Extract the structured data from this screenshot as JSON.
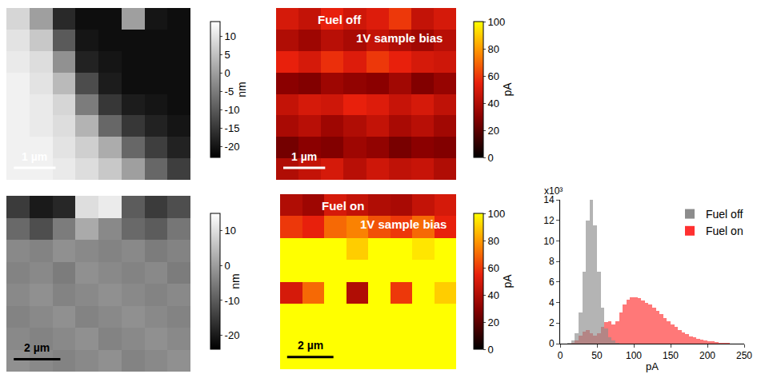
{
  "chart_data": [
    {
      "type": "heatmap",
      "xlim": [
        0,
        4.4
      ],
      "ylim": [
        0,
        4.1
      ],
      "tick_labels": false,
      "color": "gray",
      "z": [
        [
          8,
          0,
          -17,
          -21,
          -21,
          0,
          -20,
          -21
        ],
        [
          10,
          6,
          -10,
          -20,
          -21,
          -21,
          -21,
          -21
        ],
        [
          11,
          9,
          -2,
          -18,
          -20,
          -21,
          -21,
          -21
        ],
        [
          12,
          10,
          4,
          -12,
          -19,
          -21,
          -21,
          -21
        ],
        [
          12,
          11,
          8,
          -5,
          -15,
          -19,
          -20,
          -21
        ],
        [
          12,
          11,
          9,
          3,
          -8,
          -15,
          -18,
          -20
        ],
        [
          12,
          12,
          10,
          7,
          2,
          -8,
          -14,
          -18
        ],
        [
          12,
          12,
          11,
          9,
          6,
          0,
          -8,
          -14
        ]
      ],
      "zlim": [
        -23,
        14
      ],
      "zticks": [
        10,
        5,
        0,
        -5,
        -10,
        -15,
        -20
      ],
      "colorbar_title": "nm",
      "scale_bar": {
        "length": 1,
        "label": "1 µm"
      }
    },
    {
      "type": "heatmap",
      "xlim": [
        0,
        4.3
      ],
      "ylim": [
        0,
        4.1
      ],
      "tick_labels": false,
      "color": "hot",
      "z": [
        [
          50,
          45,
          55,
          48,
          52,
          60,
          45,
          50
        ],
        [
          40,
          35,
          42,
          38,
          45,
          40,
          36,
          42
        ],
        [
          55,
          50,
          58,
          52,
          60,
          55,
          50,
          48
        ],
        [
          30,
          28,
          35,
          32,
          30,
          36,
          28,
          33
        ],
        [
          45,
          50,
          48,
          55,
          52,
          46,
          50,
          44
        ],
        [
          38,
          42,
          35,
          40,
          45,
          38,
          42,
          36
        ],
        [
          25,
          30,
          28,
          35,
          32,
          26,
          30,
          28
        ],
        [
          40,
          45,
          50,
          42,
          48,
          44,
          46,
          40
        ]
      ],
      "zlim": [
        0,
        100
      ],
      "zticks": [
        0,
        20,
        40,
        60,
        80,
        100
      ],
      "colorbar_title": "pA",
      "annotations": [
        "Fuel off",
        "1V sample bias"
      ],
      "scale_bar": {
        "length": 1,
        "label": "1 µm"
      }
    },
    {
      "type": "heatmap",
      "xlim": [
        0,
        7.9
      ],
      "ylim": [
        0,
        7.6
      ],
      "tick_labels": false,
      "color": "gray",
      "z": [
        [
          -15,
          -20,
          -18,
          10,
          12,
          -10,
          -15,
          -12
        ],
        [
          -8,
          -12,
          -5,
          2,
          -3,
          -8,
          -10,
          -6
        ],
        [
          -3,
          -4,
          -2,
          -3,
          -4,
          -3,
          -5,
          -4
        ],
        [
          -4,
          -3,
          -5,
          -2,
          -3,
          -4,
          -3,
          -5
        ],
        [
          -3,
          -2,
          -4,
          -3,
          -2,
          -3,
          -4,
          -3
        ],
        [
          -4,
          -3,
          -2,
          -4,
          -3,
          -2,
          -3,
          -4
        ],
        [
          -3,
          -4,
          -3,
          -2,
          -4,
          -3,
          -2,
          -3
        ],
        [
          -2,
          -3,
          -4,
          -3,
          -2,
          -4,
          -3,
          -2
        ]
      ],
      "zlim": [
        -24,
        15
      ],
      "zticks": [
        10,
        0,
        -10,
        -20
      ],
      "colorbar_title": "nm",
      "scale_bar": {
        "length": 2,
        "label": "2 µm"
      }
    },
    {
      "type": "heatmap",
      "xlim": [
        0,
        7.6
      ],
      "ylim": [
        0,
        7.6
      ],
      "tick_labels": false,
      "color": "hot",
      "z": [
        [
          40,
          35,
          50,
          45,
          40,
          38,
          45,
          50
        ],
        [
          60,
          55,
          70,
          75,
          65,
          60,
          70,
          55
        ],
        [
          110,
          100,
          120,
          90,
          105,
          110,
          95,
          115
        ],
        [
          120,
          130,
          110,
          125,
          115,
          130,
          120,
          110
        ],
        [
          50,
          70,
          110,
          40,
          100,
          60,
          120,
          90
        ],
        [
          130,
          140,
          120,
          135,
          125,
          130,
          140,
          135
        ],
        [
          150,
          160,
          145,
          155,
          150,
          160,
          150,
          145
        ],
        [
          140,
          150,
          160,
          155,
          145,
          150,
          155,
          150
        ]
      ],
      "zlim": [
        0,
        100
      ],
      "zticks": [
        0,
        20,
        40,
        60,
        80,
        100
      ],
      "colorbar_title": "pA",
      "annotations": [
        "Fuel on",
        "1V sample bias"
      ],
      "scale_bar": {
        "length": 2,
        "label": "2 µm"
      }
    },
    {
      "type": "histogram",
      "bins": [
        0,
        5,
        10,
        15,
        20,
        25,
        30,
        35,
        40,
        45,
        50,
        55,
        60,
        65,
        70,
        75,
        80,
        85,
        90,
        95,
        100,
        105,
        110,
        115,
        120,
        125,
        130,
        135,
        140,
        145,
        150,
        155,
        160,
        165,
        170,
        175,
        180,
        185,
        190,
        195,
        200,
        205,
        210,
        215,
        220,
        225,
        230,
        235,
        240,
        245,
        250
      ],
      "series": [
        {
          "name": "Fuel on",
          "color": "#ff3030",
          "values": [
            0,
            0,
            0,
            0.1,
            0.3,
            0.8,
            1.2,
            1.3,
            1.0,
            0.8,
            1.0,
            1.6,
            2.1,
            2.2,
            1.9,
            2.2,
            3.0,
            3.8,
            4.3,
            4.5,
            4.5,
            4.4,
            4.2,
            4.0,
            3.8,
            3.5,
            3.2,
            2.9,
            2.5,
            2.2,
            1.9,
            1.6,
            1.3,
            1.1,
            0.9,
            0.7,
            0.6,
            0.5,
            0.4,
            0.3,
            0.25,
            0.2,
            0.15,
            0.1,
            0.08,
            0.05,
            0.03,
            0.02,
            0.01,
            0
          ]
        },
        {
          "name": "Fuel off",
          "color": "#8c8c8c",
          "values": [
            0,
            0,
            0.1,
            0.3,
            1.0,
            3.0,
            7.0,
            12.0,
            14.0,
            11.5,
            7.0,
            3.5,
            1.5,
            0.6,
            0.3,
            0.1,
            0,
            0,
            0,
            0,
            0,
            0,
            0,
            0,
            0,
            0,
            0,
            0,
            0,
            0,
            0,
            0,
            0,
            0,
            0,
            0,
            0,
            0,
            0,
            0,
            0,
            0,
            0,
            0,
            0,
            0,
            0,
            0,
            0,
            0
          ]
        }
      ],
      "xlim": [
        0,
        250
      ],
      "xticks": [
        0,
        50,
        100,
        150,
        200,
        250
      ],
      "ylim": [
        0,
        14
      ],
      "yticks": [
        0,
        2,
        4,
        6,
        8,
        10,
        12,
        14
      ],
      "x_label": "pA",
      "y_label": "x10³",
      "legend": "top right"
    }
  ]
}
